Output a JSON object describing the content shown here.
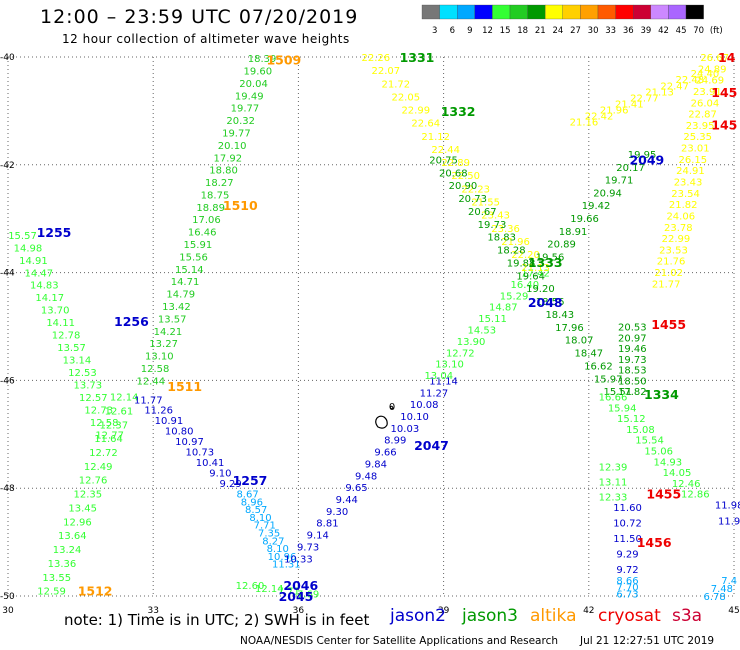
{
  "header": {
    "title": "12:00 – 23:59 UTC 07/20/2019",
    "subtitle": "12 hour collection of altimeter wave heights"
  },
  "colorbar": {
    "labels": [
      "3",
      "6",
      "9",
      "12",
      "15",
      "18",
      "21",
      "24",
      "27",
      "30",
      "33",
      "36",
      "39",
      "42",
      "45",
      "70",
      "(ft)"
    ],
    "colors": [
      "#777777",
      "#00e0ff",
      "#00a8ff",
      "#0000ff",
      "#33ff33",
      "#22cc22",
      "#009900",
      "#ffff00",
      "#ffd000",
      "#ffa000",
      "#ff5a00",
      "#ff0000",
      "#cc0033",
      "#cc88ff",
      "#aa66ff",
      "#000000"
    ]
  },
  "satellites": {
    "jason2": {
      "label": "jason2",
      "color": "#0000cc"
    },
    "jason3": {
      "label": "jason3",
      "color": "#009900"
    },
    "altika": {
      "label": "altika",
      "color": "#ff9900"
    },
    "cryosat": {
      "label": "cryosat",
      "color": "#ee0000"
    },
    "s3a": {
      "label": "s3a",
      "color": "#cc0033"
    }
  },
  "legend_note": "note:  1) Time is in UTC;  2) SWH is in feet",
  "footer": {
    "left": "NOAA/NESDIS Center for Satellite Applications and Research",
    "right": "Jul 21 12:27:51 UTC 2019"
  },
  "chart_data": {
    "type": "scatter",
    "xlim": [
      30,
      45
    ],
    "ylim": [
      -50,
      -40
    ],
    "xticks": [
      "30",
      "33",
      "36",
      "39",
      "42",
      "45"
    ],
    "yticks": [
      "-40",
      "-42",
      "-44",
      "-46",
      "-48",
      "-50"
    ],
    "grid": true,
    "island_label": "0",
    "time_labels": [
      {
        "text": "1509",
        "x": 35.7,
        "y": -40.05,
        "color": "#ff9900"
      },
      {
        "text": "1331",
        "x": 38.45,
        "y": -40.0,
        "color": "#009900"
      },
      {
        "text": "1332",
        "x": 39.3,
        "y": -41.0,
        "color": "#009900"
      },
      {
        "text": "1510",
        "x": 34.8,
        "y": -42.75,
        "color": "#ff9900"
      },
      {
        "text": "1255",
        "x": 30.95,
        "y": -43.25,
        "color": "#0000cc"
      },
      {
        "text": "1256",
        "x": 32.55,
        "y": -44.9,
        "color": "#0000cc"
      },
      {
        "text": "1511",
        "x": 33.65,
        "y": -46.1,
        "color": "#ff9900"
      },
      {
        "text": "1257",
        "x": 35.0,
        "y": -47.85,
        "color": "#0000cc"
      },
      {
        "text": "1512",
        "x": 31.8,
        "y": -49.9,
        "color": "#ff9900"
      },
      {
        "text": "2045",
        "x": 35.95,
        "y": -50.0,
        "color": "#0000cc"
      },
      {
        "text": "2046",
        "x": 36.05,
        "y": -49.8,
        "color": "#0000cc"
      },
      {
        "text": "2047",
        "x": 38.75,
        "y": -47.2,
        "color": "#0000cc"
      },
      {
        "text": "2048",
        "x": 41.1,
        "y": -44.55,
        "color": "#0000cc"
      },
      {
        "text": "1333",
        "x": 41.1,
        "y": -43.8,
        "color": "#009900"
      },
      {
        "text": "2049",
        "x": 43.2,
        "y": -41.9,
        "color": "#0000cc"
      },
      {
        "text": "1334",
        "x": 43.5,
        "y": -46.25,
        "color": "#009900"
      },
      {
        "text": "1455",
        "x": 43.65,
        "y": -44.95,
        "color": "#ee0000"
      },
      {
        "text": "1455",
        "x": 43.55,
        "y": -48.1,
        "color": "#ee0000"
      },
      {
        "text": "1456",
        "x": 43.35,
        "y": -49.0,
        "color": "#ee0000"
      },
      {
        "text": "145",
        "x": 44.8,
        "y": -40.65,
        "color": "#ee0000"
      },
      {
        "text": "145",
        "x": 44.8,
        "y": -41.25,
        "color": "#ee0000"
      },
      {
        "text": "14",
        "x": 44.85,
        "y": -40.0,
        "color": "#ee0000"
      }
    ],
    "tracks": [
      {
        "name": "jason3-a",
        "color": "#22cc22",
        "x0": 35.25,
        "y0": -40.02,
        "x1": 32.95,
        "y1": -46.0,
        "values": [
          "18.39",
          "19.60",
          "20.04",
          "19.49",
          "19.77",
          "20.32",
          "19.77",
          "20.10",
          "17.92",
          "18.80",
          "18.27",
          "18.75",
          "18.89",
          "17.06",
          "16.46",
          "15.91",
          "15.56",
          "15.14",
          "14.71",
          "14.79",
          "13.42",
          "13.57",
          "14.21",
          "13.27",
          "13.10",
          "12.58",
          "12.44"
        ]
      },
      {
        "name": "jason3-b",
        "color": "#33ff33",
        "x0": 30.3,
        "y0": -43.3,
        "x1": 32.1,
        "y1": -47.0,
        "values": [
          "15.57",
          "14.98",
          "14.91",
          "14.47",
          "14.83",
          "14.17",
          "13.70",
          "14.11",
          "12.78",
          "13.57",
          "13.14",
          "12.53",
          "13.73",
          "12.57",
          "12.73",
          "12.58",
          "12.77"
        ]
      },
      {
        "name": "jason3-c",
        "color": "#33ff33",
        "x0": 32.4,
        "y0": -46.3,
        "x1": 30.9,
        "y1": -49.9,
        "values": [
          "12.14",
          "12.61",
          "12.37",
          "11.64",
          "12.72",
          "12.49",
          "12.76",
          "12.35",
          "13.45",
          "12.96",
          "13.64",
          "13.24",
          "13.36",
          "13.55",
          "12.59"
        ]
      },
      {
        "name": "jason2-a",
        "color": "#0000cc",
        "x0": 32.9,
        "y0": -46.35,
        "x1": 34.6,
        "y1": -47.9,
        "values": [
          "11.77",
          "11.26",
          "10.91",
          "10.80",
          "10.97",
          "10.73",
          "10.41",
          "9.10",
          "9.29"
        ]
      },
      {
        "name": "jason2-b",
        "color": "#00a8ff",
        "x0": 34.95,
        "y0": -48.1,
        "x1": 35.75,
        "y1": -49.4,
        "values": [
          "8.67",
          "8.96",
          "8.57",
          "8.10",
          "7.71",
          "7.35",
          "8.27",
          "8.10",
          "10.96",
          "11.31"
        ]
      },
      {
        "name": "jason3-d",
        "color": "#33ff33",
        "x0": 35.0,
        "y0": -49.8,
        "x1": 36.2,
        "y1": -49.95,
        "values": [
          "12.60",
          "12.14",
          "7.71",
          "7.69"
        ]
      },
      {
        "name": "jason2-c",
        "color": "#0000cc",
        "x0": 36.0,
        "y0": -49.3,
        "x1": 39.0,
        "y1": -46.0,
        "values": [
          "10.33",
          "9.73",
          "9.14",
          "8.81",
          "9.30",
          "9.44",
          "9.65",
          "9.48",
          "9.84",
          "9.66",
          "8.99",
          "10.03",
          "10.10",
          "10.08",
          "11.27",
          "11.14"
        ]
      },
      {
        "name": "jason3-e",
        "color": "#33ff33",
        "x0": 38.9,
        "y0": -45.9,
        "x1": 40.9,
        "y1": -44.0,
        "values": [
          "13.04",
          "13.10",
          "12.72",
          "13.90",
          "14.53",
          "15.11",
          "14.87",
          "15.29",
          "16.40",
          "17.42"
        ]
      },
      {
        "name": "altika-a",
        "color": "#ffff00",
        "x0": 37.6,
        "y0": -40.0,
        "x1": 40.9,
        "y1": -43.9,
        "values": [
          "22.26",
          "22.07",
          "21.72",
          "22.05",
          "22.99",
          "22.64",
          "21.12",
          "22.44",
          "22.89",
          "22.50",
          "22.23",
          "21.55",
          "23.43",
          "23.36",
          "21.96",
          "22.20",
          "21.13"
        ]
      },
      {
        "name": "jason3-f",
        "color": "#009900",
        "x0": 39.0,
        "y0": -41.9,
        "x1": 42.6,
        "y1": -46.2,
        "values": [
          "20.75",
          "20.68",
          "20.90",
          "20.73",
          "20.67",
          "19.73",
          "18.83",
          "18.28",
          "19.88",
          "19.64",
          "19.20",
          "18.56",
          "18.43",
          "17.96",
          "18.07",
          "18.47",
          "16.62",
          "15.97",
          "15.51"
        ]
      },
      {
        "name": "jason3-g",
        "color": "#009900",
        "x0": 41.2,
        "y0": -43.7,
        "x1": 43.1,
        "y1": -41.8,
        "values": [
          "19.56",
          "20.89",
          "18.91",
          "19.66",
          "19.42",
          "20.94",
          "19.71",
          "20.17",
          "19.95"
        ]
      },
      {
        "name": "jason3-h",
        "color": "#009900",
        "x0": 42.9,
        "y0": -45.0,
        "x1": 42.9,
        "y1": -46.2,
        "values": [
          "20.53",
          "20.97",
          "19.46",
          "19.73",
          "18.53",
          "18.50",
          "17.82"
        ]
      },
      {
        "name": "jason3-i",
        "color": "#33ff33",
        "x0": 42.5,
        "y0": -46.3,
        "x1": 44.2,
        "y1": -48.1,
        "values": [
          "16.66",
          "15.94",
          "15.12",
          "15.08",
          "15.54",
          "15.06",
          "14.93",
          "14.05",
          "12.46",
          "12.86"
        ]
      },
      {
        "name": "jason3-j",
        "color": "#33ff33",
        "x0": 42.5,
        "y0": -47.6,
        "x1": 42.5,
        "y1": -48.15,
        "values": [
          "12.39",
          "13.11",
          "12.33"
        ]
      },
      {
        "name": "altika-b",
        "color": "#ffff00",
        "x0": 41.9,
        "y0": -41.2,
        "x1": 44.4,
        "y1": -40.3,
        "values": [
          "21.16",
          "22.42",
          "21.96",
          "21.41",
          "22.77",
          "21.13",
          "22.47",
          "22.48",
          "24.40"
        ]
      },
      {
        "name": "altika-c",
        "color": "#ffff00",
        "x0": 44.6,
        "y0": -40.0,
        "x1": 43.6,
        "y1": -44.2,
        "values": [
          "26.67",
          "24.89",
          "24.69",
          "23.91",
          "26.04",
          "22.87",
          "23.95",
          "25.35",
          "23.01",
          "26.15",
          "24.91",
          "23.43",
          "23.54",
          "21.82",
          "24.06",
          "23.78",
          "22.99",
          "23.53",
          "21.76",
          "21.02",
          "21.77"
        ]
      },
      {
        "name": "jason2-d",
        "color": "#0000cc",
        "x0": 42.8,
        "y0": -48.35,
        "x1": 42.8,
        "y1": -49.5,
        "values": [
          "11.60",
          "10.72",
          "11.50",
          "9.29",
          "9.72"
        ]
      },
      {
        "name": "jason2-e",
        "color": "#00a8ff",
        "x0": 42.8,
        "y0": -49.7,
        "x1": 42.8,
        "y1": -49.95,
        "values": [
          "8.66",
          "7.70",
          "6.73"
        ]
      },
      {
        "name": "jason2-f",
        "color": "#0000cc",
        "x0": 44.9,
        "y0": -48.3,
        "x1": 44.9,
        "y1": -48.6,
        "values": [
          "11.98",
          "11.9"
        ]
      },
      {
        "name": "jason2-g",
        "color": "#00a8ff",
        "x0": 44.9,
        "y0": -49.7,
        "x1": 44.6,
        "y1": -50.0,
        "values": [
          "7.4",
          "7.48",
          "6.78"
        ]
      }
    ]
  }
}
